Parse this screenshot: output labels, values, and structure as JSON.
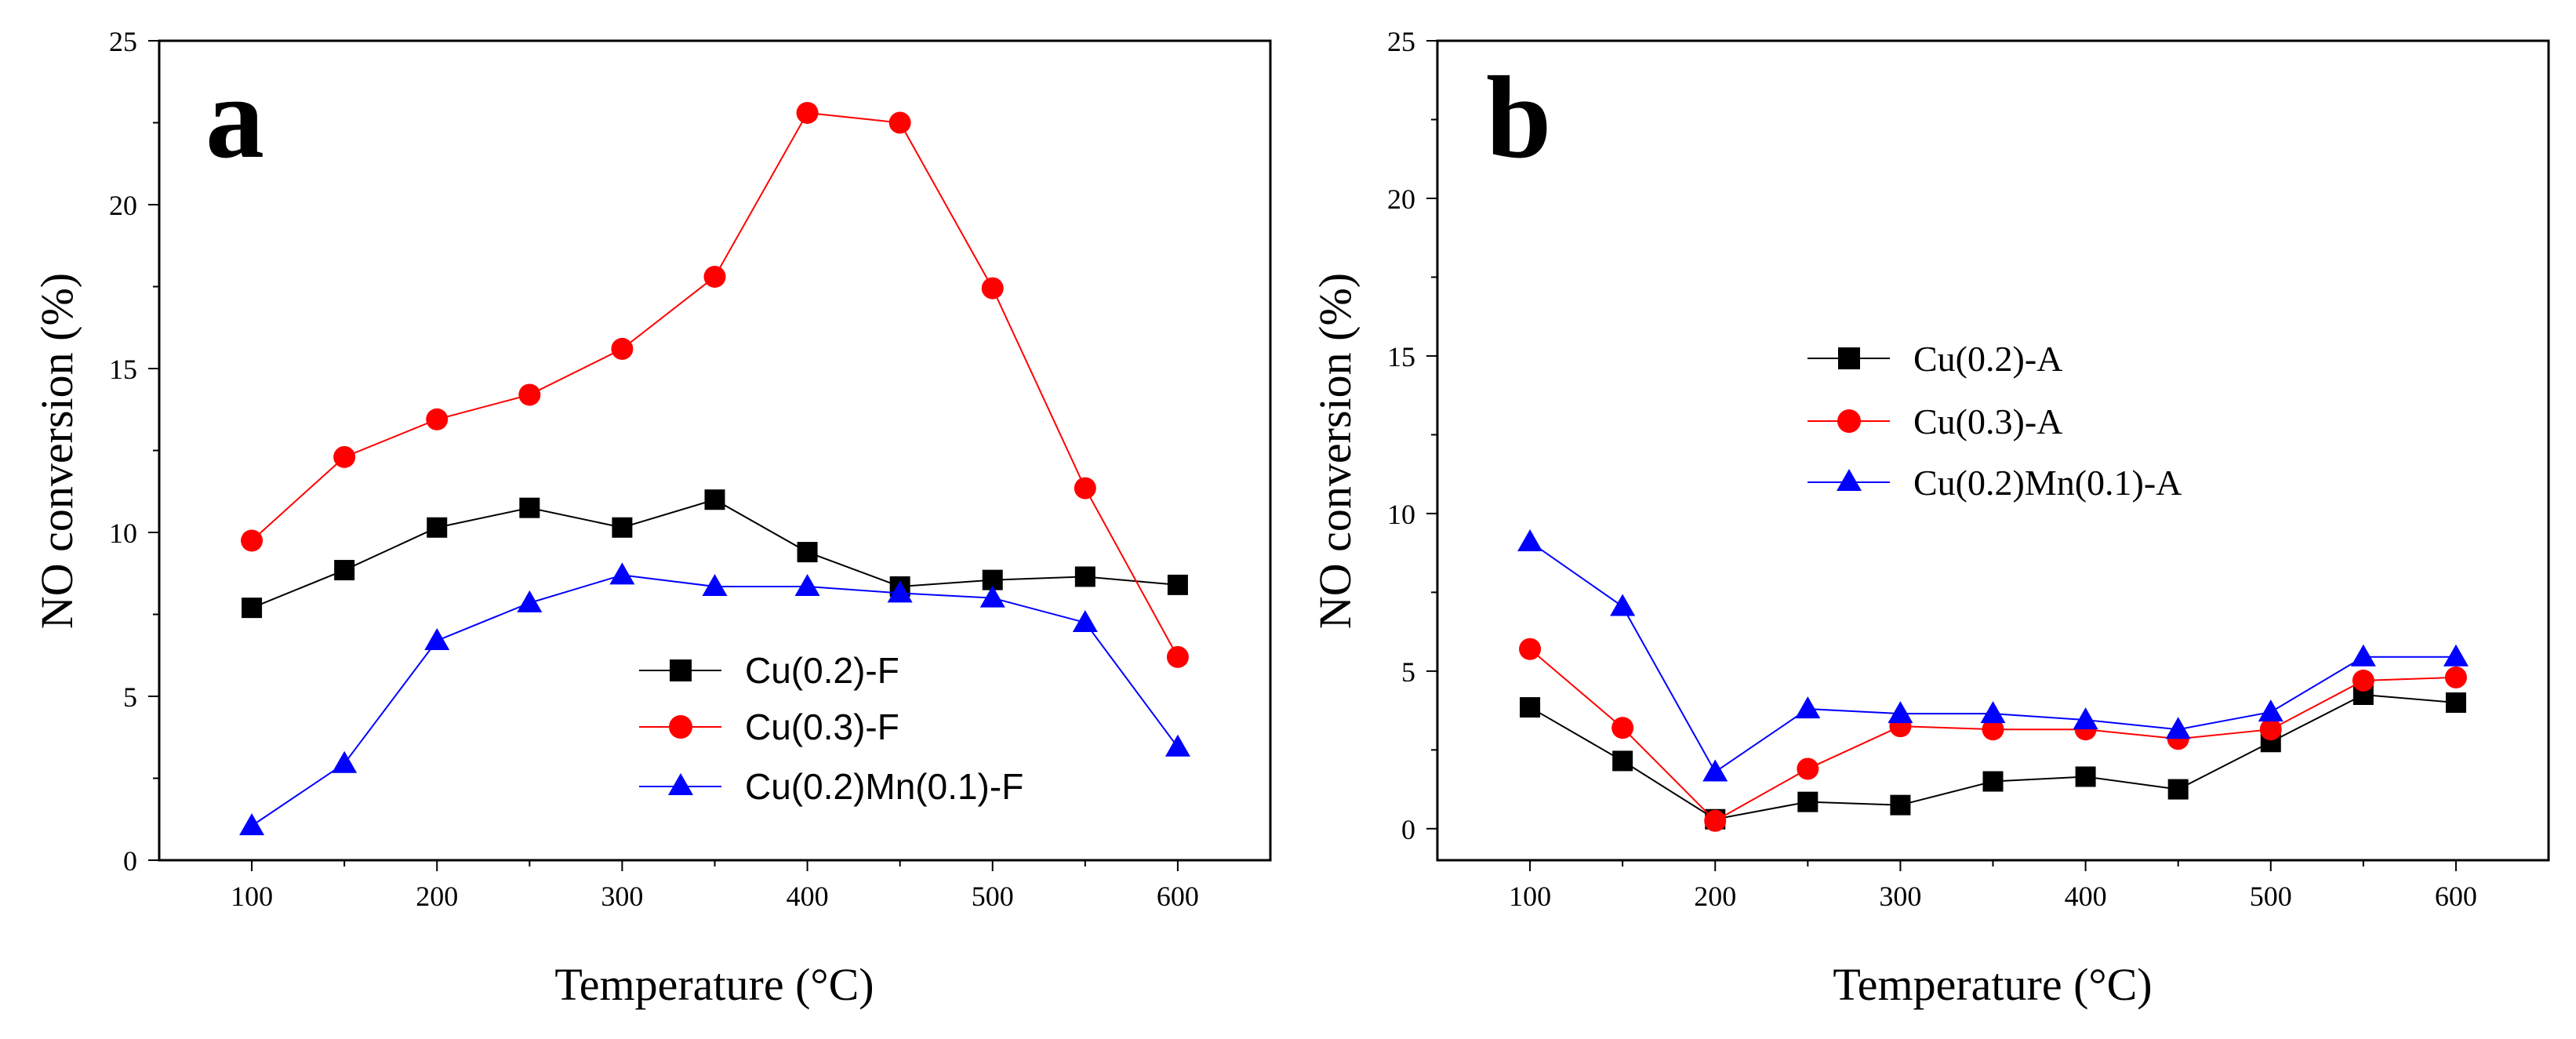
{
  "chart_data": [
    {
      "type": "line",
      "panel_label": "a",
      "xlabel": "Temperature (°C)",
      "ylabel": "NO conversion (%)",
      "xlim": [
        50,
        650
      ],
      "ylim": [
        0,
        25
      ],
      "xticks": [
        100,
        200,
        300,
        400,
        500,
        600
      ],
      "yticks": [
        0,
        5,
        10,
        15,
        20,
        25
      ],
      "legend_position": "lower-right",
      "x": [
        100,
        150,
        200,
        250,
        300,
        350,
        400,
        450,
        500,
        550,
        600
      ],
      "series": [
        {
          "name": "Cu(0.2)-F",
          "color": "#000000",
          "marker": "square",
          "values": [
            7.7,
            8.85,
            10.15,
            10.75,
            10.15,
            11.0,
            9.4,
            8.35,
            8.55,
            8.65,
            8.4
          ]
        },
        {
          "name": "Cu(0.3)-F",
          "color": "#ff0000",
          "marker": "circle",
          "values": [
            9.75,
            12.3,
            13.45,
            14.2,
            15.6,
            17.8,
            22.8,
            22.5,
            17.45,
            11.35,
            6.2
          ]
        },
        {
          "name": "Cu(0.2)Mn(0.1)-F",
          "color": "#0000ff",
          "marker": "triangle",
          "values": [
            1.05,
            2.95,
            6.7,
            7.85,
            8.7,
            8.35,
            8.35,
            8.15,
            8.0,
            7.25,
            3.45
          ]
        }
      ]
    },
    {
      "type": "line",
      "panel_label": "b",
      "xlabel": "Temperature (°C)",
      "ylabel": "NO conversion (%)",
      "xlim": [
        50,
        650
      ],
      "ylim": [
        -1,
        25
      ],
      "xticks": [
        100,
        200,
        300,
        400,
        500,
        600
      ],
      "yticks": [
        0,
        5,
        10,
        15,
        20,
        25
      ],
      "legend_position": "middle-center",
      "x": [
        100,
        150,
        200,
        250,
        300,
        350,
        400,
        450,
        500,
        550,
        600
      ],
      "series": [
        {
          "name": "Cu(0.2)-A",
          "color": "#000000",
          "marker": "square",
          "values": [
            3.85,
            2.15,
            0.3,
            0.85,
            0.75,
            1.5,
            1.65,
            1.25,
            2.75,
            4.25,
            4.0
          ]
        },
        {
          "name": "Cu(0.3)-A",
          "color": "#ff0000",
          "marker": "circle",
          "values": [
            5.7,
            3.2,
            0.25,
            1.9,
            3.25,
            3.15,
            3.15,
            2.85,
            3.15,
            4.7,
            4.8
          ]
        },
        {
          "name": "Cu(0.2)Mn(0.1)-A",
          "color": "#0000ff",
          "marker": "triangle",
          "values": [
            9.1,
            7.05,
            1.8,
            3.8,
            3.65,
            3.65,
            3.45,
            3.15,
            3.7,
            5.45,
            5.45
          ]
        }
      ]
    }
  ]
}
